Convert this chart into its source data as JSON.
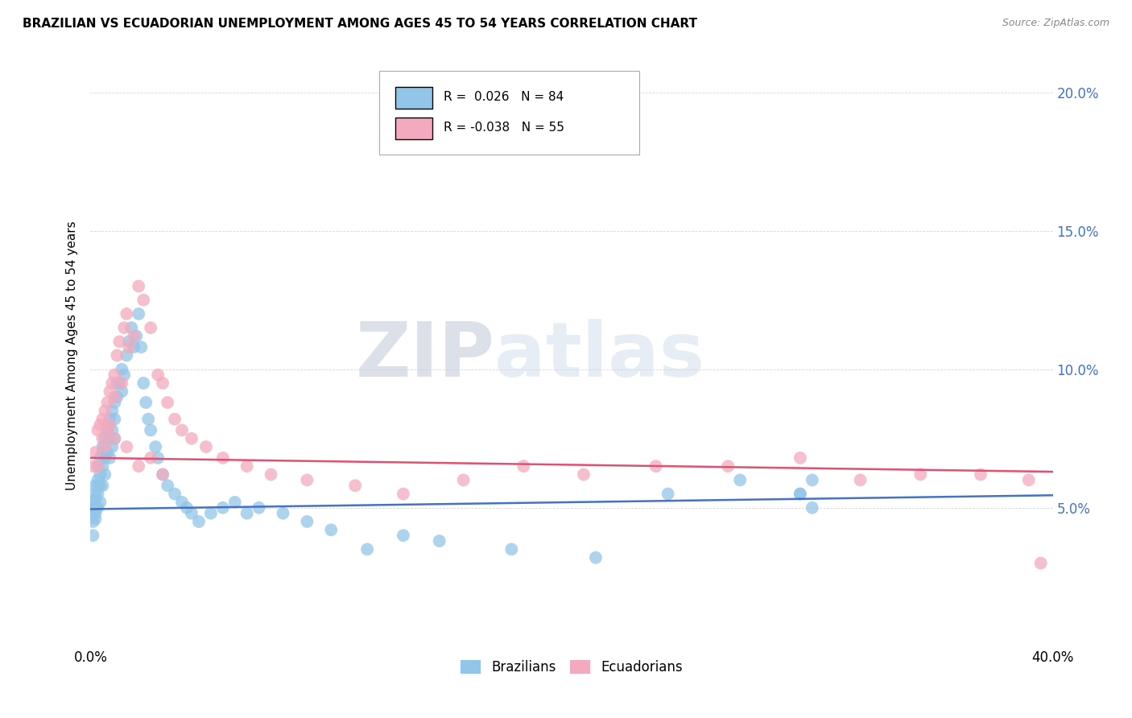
{
  "title": "BRAZILIAN VS ECUADORIAN UNEMPLOYMENT AMONG AGES 45 TO 54 YEARS CORRELATION CHART",
  "source": "Source: ZipAtlas.com",
  "ylabel": "Unemployment Among Ages 45 to 54 years",
  "xlim": [
    0.0,
    0.4
  ],
  "ylim": [
    0.0,
    0.21
  ],
  "x_ticks": [
    0.0,
    0.1,
    0.2,
    0.3,
    0.4
  ],
  "x_tick_labels": [
    "0.0%",
    "",
    "",
    "",
    "40.0%"
  ],
  "y_ticks_left": [
    0.0,
    0.05,
    0.1,
    0.15,
    0.2
  ],
  "y_tick_labels_left": [
    "",
    "",
    "",
    "",
    ""
  ],
  "y_ticks_right": [
    0.0,
    0.05,
    0.1,
    0.15,
    0.2
  ],
  "y_tick_labels_right": [
    "",
    "5.0%",
    "10.0%",
    "15.0%",
    "20.0%"
  ],
  "brazilian_R": 0.026,
  "brazilian_N": 84,
  "ecuadorian_R": -0.038,
  "ecuadorian_N": 55,
  "blue_color": "#92C5E8",
  "pink_color": "#F4AABE",
  "blue_line_color": "#4472C4",
  "pink_line_color": "#E05070",
  "watermark_zip": "ZIP",
  "watermark_atlas": "atlas",
  "legend_blue_label": "Brazilians",
  "legend_pink_label": "Ecuadorians",
  "braz_x": [
    0.001,
    0.001,
    0.001,
    0.001,
    0.001,
    0.002,
    0.002,
    0.002,
    0.002,
    0.002,
    0.002,
    0.003,
    0.003,
    0.003,
    0.003,
    0.003,
    0.004,
    0.004,
    0.004,
    0.004,
    0.005,
    0.005,
    0.005,
    0.005,
    0.006,
    0.006,
    0.006,
    0.007,
    0.007,
    0.007,
    0.008,
    0.008,
    0.008,
    0.009,
    0.009,
    0.009,
    0.01,
    0.01,
    0.01,
    0.011,
    0.011,
    0.012,
    0.013,
    0.013,
    0.014,
    0.015,
    0.016,
    0.017,
    0.018,
    0.019,
    0.02,
    0.021,
    0.022,
    0.023,
    0.024,
    0.025,
    0.027,
    0.028,
    0.03,
    0.032,
    0.035,
    0.038,
    0.04,
    0.042,
    0.045,
    0.05,
    0.055,
    0.06,
    0.065,
    0.07,
    0.08,
    0.09,
    0.1,
    0.115,
    0.13,
    0.145,
    0.175,
    0.21,
    0.24,
    0.27,
    0.295,
    0.3,
    0.3,
    0.295
  ],
  "braz_y": [
    0.05,
    0.048,
    0.052,
    0.045,
    0.04,
    0.055,
    0.053,
    0.05,
    0.048,
    0.058,
    0.046,
    0.06,
    0.058,
    0.065,
    0.05,
    0.055,
    0.062,
    0.058,
    0.068,
    0.052,
    0.065,
    0.07,
    0.058,
    0.072,
    0.068,
    0.075,
    0.062,
    0.078,
    0.07,
    0.08,
    0.082,
    0.075,
    0.068,
    0.085,
    0.078,
    0.072,
    0.088,
    0.082,
    0.075,
    0.09,
    0.095,
    0.095,
    0.1,
    0.092,
    0.098,
    0.105,
    0.11,
    0.115,
    0.108,
    0.112,
    0.12,
    0.108,
    0.095,
    0.088,
    0.082,
    0.078,
    0.072,
    0.068,
    0.062,
    0.058,
    0.055,
    0.052,
    0.05,
    0.048,
    0.045,
    0.048,
    0.05,
    0.052,
    0.048,
    0.05,
    0.048,
    0.045,
    0.042,
    0.035,
    0.04,
    0.038,
    0.035,
    0.032,
    0.055,
    0.06,
    0.055,
    0.05,
    0.06,
    0.055
  ],
  "ecua_x": [
    0.001,
    0.002,
    0.003,
    0.003,
    0.004,
    0.005,
    0.005,
    0.006,
    0.006,
    0.007,
    0.007,
    0.008,
    0.008,
    0.009,
    0.01,
    0.01,
    0.011,
    0.012,
    0.013,
    0.014,
    0.015,
    0.016,
    0.018,
    0.02,
    0.022,
    0.025,
    0.028,
    0.03,
    0.032,
    0.035,
    0.038,
    0.042,
    0.048,
    0.055,
    0.065,
    0.075,
    0.09,
    0.11,
    0.13,
    0.155,
    0.18,
    0.205,
    0.235,
    0.265,
    0.295,
    0.32,
    0.345,
    0.37,
    0.39,
    0.395,
    0.01,
    0.015,
    0.02,
    0.025,
    0.03
  ],
  "ecua_y": [
    0.065,
    0.07,
    0.078,
    0.065,
    0.08,
    0.082,
    0.075,
    0.085,
    0.072,
    0.088,
    0.078,
    0.092,
    0.08,
    0.095,
    0.098,
    0.09,
    0.105,
    0.11,
    0.095,
    0.115,
    0.12,
    0.108,
    0.112,
    0.13,
    0.125,
    0.115,
    0.098,
    0.095,
    0.088,
    0.082,
    0.078,
    0.075,
    0.072,
    0.068,
    0.065,
    0.062,
    0.06,
    0.058,
    0.055,
    0.06,
    0.065,
    0.062,
    0.065,
    0.065,
    0.068,
    0.06,
    0.062,
    0.062,
    0.06,
    0.03,
    0.075,
    0.072,
    0.065,
    0.068,
    0.062
  ],
  "blue_line_x0": 0.0,
  "blue_line_y0": 0.0495,
  "blue_line_x1": 0.4,
  "blue_line_y1": 0.0545,
  "pink_line_x0": 0.0,
  "pink_line_y0": 0.068,
  "pink_line_x1": 0.4,
  "pink_line_y1": 0.063
}
